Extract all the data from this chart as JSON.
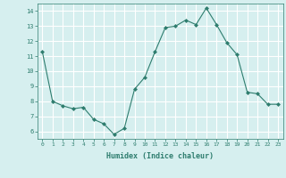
{
  "x": [
    0,
    1,
    2,
    3,
    4,
    5,
    6,
    7,
    8,
    9,
    10,
    11,
    12,
    13,
    14,
    15,
    16,
    17,
    18,
    19,
    20,
    21,
    22,
    23
  ],
  "y": [
    11.3,
    8.0,
    7.7,
    7.5,
    7.6,
    6.8,
    6.5,
    5.8,
    6.2,
    8.8,
    9.6,
    11.3,
    12.9,
    13.0,
    13.4,
    13.1,
    14.2,
    13.1,
    11.9,
    11.1,
    8.6,
    8.5,
    7.8,
    7.8
  ],
  "line_color": "#2e7d6e",
  "marker": "D",
  "marker_size": 2.0,
  "bg_color": "#d6efef",
  "grid_color": "#ffffff",
  "xlabel": "Humidex (Indice chaleur)",
  "xlabel_color": "#2e7d6e",
  "tick_color": "#2e7d6e",
  "ylim": [
    5.5,
    14.5
  ],
  "yticks": [
    6,
    7,
    8,
    9,
    10,
    11,
    12,
    13,
    14
  ],
  "xlim": [
    -0.5,
    23.5
  ],
  "xticks": [
    0,
    1,
    2,
    3,
    4,
    5,
    6,
    7,
    8,
    9,
    10,
    11,
    12,
    13,
    14,
    15,
    16,
    17,
    18,
    19,
    20,
    21,
    22,
    23
  ]
}
